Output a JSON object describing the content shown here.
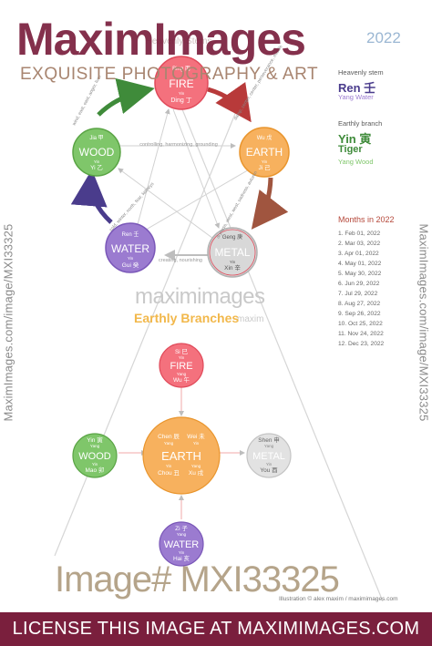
{
  "watermark": {
    "brand": "MaximImages",
    "tagline": "EXQUISITE PHOTOGRAPHY & ART",
    "side_text": "MaximImages.com/image/MXI33325",
    "center": "maximimages",
    "center_sub": "maxim",
    "image_number": "Image# MXI33325",
    "credit": "Illustration © alex maxim / maximimages.com",
    "license": "LICENSE THIS IMAGE AT MAXIMIMAGES.COM"
  },
  "header": {
    "faded_title": "Heavenly Stems",
    "year": "2022"
  },
  "right_panel": {
    "heavenly_stem": {
      "title": "Heavenly stem",
      "name": "Ren 壬",
      "sub": "Yang Water"
    },
    "earthly_branch": {
      "title": "Earthly branch",
      "name": "Yin 寅",
      "animal": "Tiger",
      "sub": "Yang Wood"
    }
  },
  "months": {
    "title": "Months in 2022",
    "items": [
      "1. Feb 01, 2022",
      "2. Mar 03, 2022",
      "3. Apr 01, 2022",
      "4. May 01, 2022",
      "5. May 30, 2022",
      "6. Jun 29, 2022",
      "7. Jul 29, 2022",
      "8. Aug 27, 2022",
      "9. Sep 26, 2022",
      "10. Oct 25, 2022",
      "11. Nov 24, 2022",
      "12. Dec 23, 2022"
    ]
  },
  "stems_cycle": {
    "relation_label": "controlling, harmonizing, grounding",
    "creating_label": "creating, nourishing",
    "fire": {
      "name": "FIRE",
      "yang": "Yang",
      "yin": "Yin",
      "s1": "Bing 丙",
      "s2": "Ding 丁",
      "color": "#f4717d"
    },
    "earth": {
      "name": "EARTH",
      "yang": "Yang",
      "yin": "Yin",
      "s1": "Wu 戊",
      "s2": "Ji 己",
      "color": "#f7b15e",
      "arc": "damp, center, center, perseverance, middle"
    },
    "metal": {
      "name": "METAL",
      "yang": "Yang",
      "yin": "Yin",
      "s1": "Geng 庚",
      "s2": "Xin 辛",
      "color": "#cfcfcf",
      "arc": "dryness, west, west, sadness, autumn"
    },
    "water": {
      "name": "WATER",
      "yang": "Yang",
      "yin": "Yin",
      "s1": "Ren 壬",
      "s2": "Gui 癸",
      "color": "#9b7bd0",
      "arc": "cold, winter, north, fear, kidneys"
    },
    "wood": {
      "name": "WOOD",
      "yang": "Yang",
      "yin": "Yin",
      "s1": "Jia 甲",
      "s2": "Yi 乙",
      "color": "#7fc66a",
      "arc": "wind, east, east, anger, liver"
    }
  },
  "branches": {
    "title": "Earthly Branches",
    "fire": {
      "name": "FIRE",
      "b1": "Si 巳",
      "b2": "Wu 午",
      "t1": "Yin",
      "t2": "Yang",
      "color": "#f4717d"
    },
    "earth": {
      "name": "EARTH",
      "b1": "Chen 辰",
      "b2": "Wei 未",
      "b3": "Chou 丑",
      "b4": "Xu 戌",
      "t1": "Yang",
      "t2": "Yin",
      "t3": "Yin",
      "t4": "Yang",
      "color": "#f7b15e"
    },
    "wood": {
      "name": "WOOD",
      "b1": "Yin 寅",
      "b2": "Mao 卯",
      "t1": "Yang",
      "t2": "Yin",
      "color": "#7fc66a"
    },
    "metal": {
      "name": "METAL",
      "b1": "Shen 申",
      "b2": "You 酉",
      "t1": "Yang",
      "t2": "Yin",
      "color": "#dcdcdc"
    },
    "water": {
      "name": "WATER",
      "b1": "Zi 子",
      "b2": "Hai 亥",
      "t1": "Yang",
      "t2": "Yin",
      "color": "#9b7bd0"
    }
  },
  "colors": {
    "brand": "#7a1f3d",
    "arrow_fire_earth": "#b83a3a",
    "arrow_earth_metal": "#a0553f",
    "arrow_wood_fire": "#3f8b3a",
    "arrow_water_wood": "#4a3c8c"
  }
}
